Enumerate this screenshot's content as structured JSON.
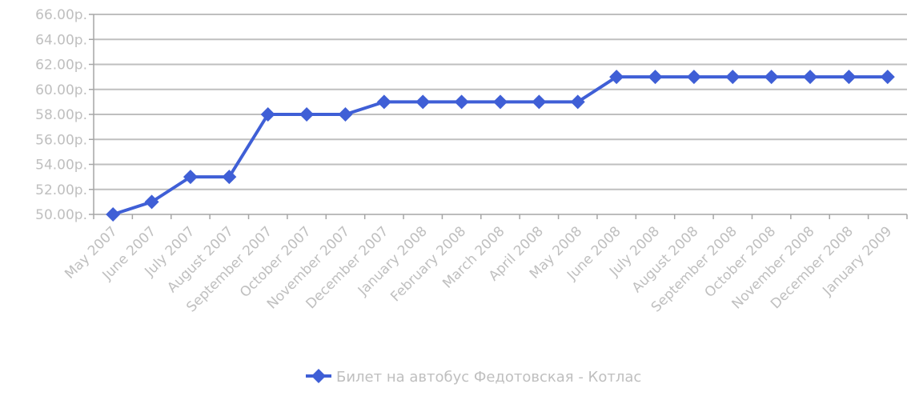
{
  "chart_data": {
    "type": "line",
    "categories": [
      "May 2007",
      "June 2007",
      "July 2007",
      "August 2007",
      "September 2007",
      "October 2007",
      "November 2007",
      "December 2007",
      "January 2008",
      "February 2008",
      "March 2008",
      "April 2008",
      "May 2008",
      "June 2008",
      "July 2008",
      "August 2008",
      "September 2008",
      "October 2008",
      "November 2008",
      "December 2008",
      "January 2009"
    ],
    "series": [
      {
        "name": "Билет на автобус Федотовская - Котлас",
        "values": [
          50,
          51,
          53,
          53,
          58,
          58,
          58,
          59,
          59,
          59,
          59,
          59,
          59,
          61,
          61,
          61,
          61,
          61,
          61,
          61,
          61
        ]
      }
    ],
    "ylim": [
      50,
      66
    ],
    "yticks": [
      50,
      52,
      54,
      56,
      58,
      60,
      62,
      64,
      66
    ],
    "ytick_labels": [
      "50.00р.",
      "52.00р.",
      "54.00р.",
      "56.00р.",
      "58.00р.",
      "60.00р.",
      "62.00р.",
      "64.00р.",
      "66.00р."
    ],
    "grid": true,
    "legend_position": "bottom",
    "colors": {
      "series": "#3f5fd6",
      "grid": "#bfbfbf",
      "text": "#bfbfbf",
      "axis": "#a6a6a6"
    }
  }
}
